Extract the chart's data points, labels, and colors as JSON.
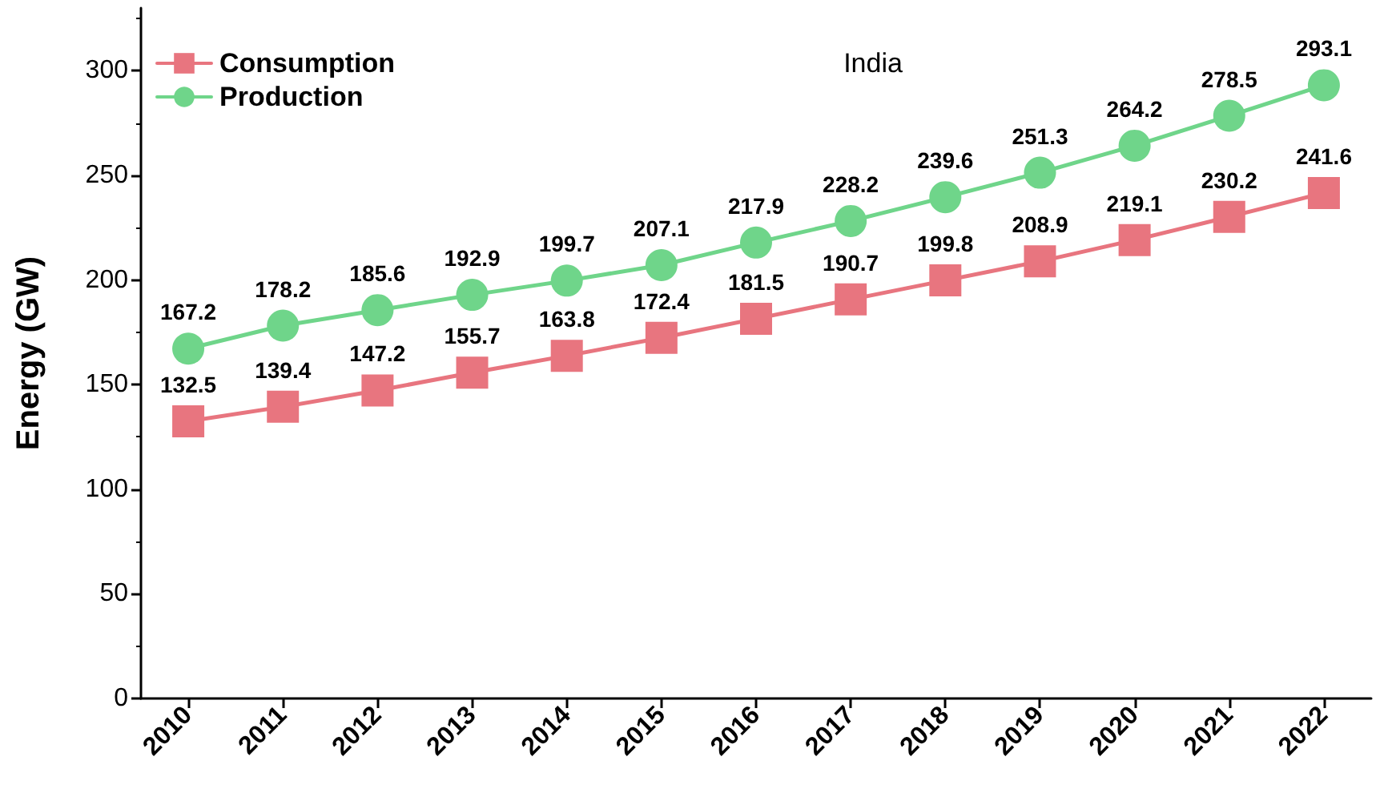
{
  "chart_data": {
    "type": "line",
    "title": "India",
    "ylabel": "Energy (GW)",
    "categories": [
      "2010",
      "2011",
      "2012",
      "2013",
      "2014",
      "2015",
      "2016",
      "2017",
      "2018",
      "2019",
      "2020",
      "2021",
      "2022"
    ],
    "series": [
      {
        "name": "Consumption",
        "color": "#e8757f",
        "marker": "square",
        "values": [
          132.5,
          139.4,
          147.2,
          155.7,
          163.8,
          172.4,
          181.5,
          190.7,
          199.8,
          208.9,
          219.1,
          230.2,
          241.6
        ]
      },
      {
        "name": "Production",
        "color": "#6fd58a",
        "marker": "circle",
        "values": [
          167.2,
          178.2,
          185.6,
          192.9,
          199.7,
          207.1,
          217.9,
          228.2,
          239.6,
          251.3,
          264.2,
          278.5,
          293.1
        ]
      }
    ],
    "ylim": [
      0,
      330
    ],
    "yticks": [
      0,
      50,
      100,
      150,
      200,
      250,
      300
    ],
    "grid": false,
    "legend": "top left",
    "data_labels": true,
    "line_style": "solid"
  }
}
